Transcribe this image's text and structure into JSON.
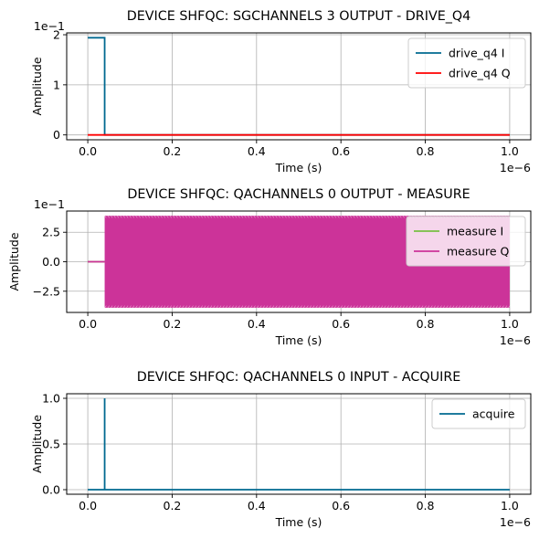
{
  "chart_data": [
    {
      "type": "line",
      "title": "DEVICE SHFQC: SGCHANNELS 3 OUTPUT - DRIVE_Q4",
      "xlabel": "Time (s)",
      "ylabel": "Amplitude",
      "x_offset_label": "1e−6",
      "y_offset_label": "1e−1",
      "xlim": [
        -0.05,
        1.05
      ],
      "ylim": [
        -0.097,
        2.037
      ],
      "x_ticks": [
        0.0,
        0.2,
        0.4,
        0.6,
        0.8,
        1.0
      ],
      "x_tick_labels": [
        "0.0",
        "0.2",
        "0.4",
        "0.6",
        "0.8",
        "1.0"
      ],
      "y_ticks": [
        0,
        1,
        2
      ],
      "y_tick_labels": [
        "0",
        "1",
        "2"
      ],
      "grid": true,
      "legend": "upper right",
      "series": [
        {
          "name": "drive_q4 I",
          "color": "#006990",
          "x": [
            0.0,
            0.04,
            0.04,
            1.0
          ],
          "y": [
            1.94,
            1.94,
            0.0,
            0.0
          ]
        },
        {
          "name": "drive_q4 Q",
          "color": "#ff0000",
          "x": [
            0.0,
            1.0
          ],
          "y": [
            0.0,
            0.0
          ]
        }
      ]
    },
    {
      "type": "line",
      "title": "DEVICE SHFQC: QACHANNELS 0 OUTPUT - MEASURE",
      "xlabel": "Time (s)",
      "ylabel": "Amplitude",
      "x_offset_label": "1e−6",
      "y_offset_label": "1e−1",
      "xlim": [
        -0.05,
        1.05
      ],
      "ylim": [
        -4.3,
        4.3
      ],
      "x_ticks": [
        0.0,
        0.2,
        0.4,
        0.6,
        0.8,
        1.0
      ],
      "x_tick_labels": [
        "0.0",
        "0.2",
        "0.4",
        "0.6",
        "0.8",
        "1.0"
      ],
      "y_ticks": [
        -2.5,
        0.0,
        2.5
      ],
      "y_tick_labels": [
        "−2.5",
        "0.0",
        "2.5"
      ],
      "grid": true,
      "legend": "upper right",
      "series": [
        {
          "name": "measure I",
          "color": "#77c043",
          "x": [
            0.0,
            0.04
          ],
          "y": [
            0.0,
            0.0
          ]
        },
        {
          "name": "measure Q",
          "color": "#cc3399",
          "x": [
            0.0,
            0.04
          ],
          "y": [
            0.0,
            0.0
          ],
          "oscillation": {
            "x_start": 0.04,
            "x_end": 1.0,
            "amplitude": 3.9
          }
        }
      ]
    },
    {
      "type": "line",
      "title": "DEVICE SHFQC: QACHANNELS 0 INPUT - ACQUIRE",
      "xlabel": "Time (s)",
      "ylabel": "Amplitude",
      "x_offset_label": "1e−6",
      "y_offset_label": "",
      "xlim": [
        -0.05,
        1.05
      ],
      "ylim": [
        -0.05,
        1.05
      ],
      "x_ticks": [
        0.0,
        0.2,
        0.4,
        0.6,
        0.8,
        1.0
      ],
      "x_tick_labels": [
        "0.0",
        "0.2",
        "0.4",
        "0.6",
        "0.8",
        "1.0"
      ],
      "y_ticks": [
        0.0,
        0.5,
        1.0
      ],
      "y_tick_labels": [
        "0.0",
        "0.5",
        "1.0"
      ],
      "grid": true,
      "legend": "upper right",
      "series": [
        {
          "name": "acquire",
          "color": "#006990",
          "x": [
            0.0,
            0.04,
            0.04,
            0.04,
            1.0
          ],
          "y": [
            0.0,
            0.0,
            1.0,
            0.0,
            0.0
          ]
        }
      ]
    }
  ]
}
